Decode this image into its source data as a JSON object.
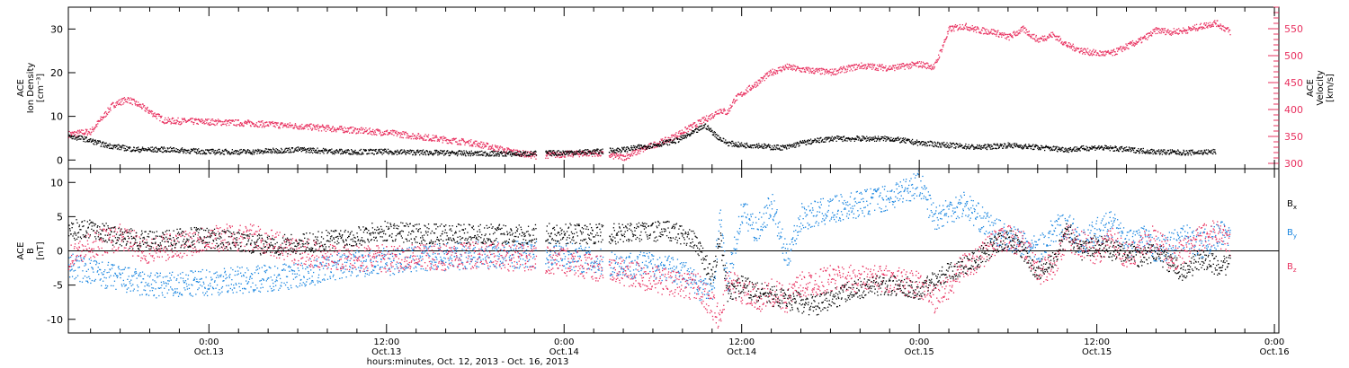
{
  "colors": {
    "black": "#000000",
    "pink": "#e8305f",
    "blue": "#1a86e0",
    "axis": "#000000"
  },
  "chart_data": [
    {
      "type": "scatter",
      "panel": "top",
      "xlabel": "hours:minutes, Oct. 12, 2013 - Oct. 16, 2013",
      "x_unit": "hours since Oct. 12, 2013 00:00",
      "xlim": [
        14.5,
        96.3
      ],
      "x_ticks": [
        {
          "hours": 24,
          "time": "0:00",
          "date": "Oct.13"
        },
        {
          "hours": 36,
          "time": "12:00",
          "date": "Oct.13"
        },
        {
          "hours": 48,
          "time": "0:00",
          "date": "Oct.14"
        },
        {
          "hours": 60,
          "time": "12:00",
          "date": "Oct.14"
        },
        {
          "hours": 72,
          "time": "0:00",
          "date": "Oct.15"
        },
        {
          "hours": 84,
          "time": "12:00",
          "date": "Oct.15"
        },
        {
          "hours": 96,
          "time": "0:00",
          "date": "Oct.16"
        }
      ],
      "left_axis": {
        "label_lines": [
          "ACE",
          "Ion Density",
          "[cm⁻³]"
        ],
        "ylim": [
          -2,
          35
        ],
        "ticks": [
          0,
          10,
          20,
          30
        ]
      },
      "right_axis": {
        "label_lines": [
          "ACE",
          "Velocity",
          "[km/s]"
        ],
        "ylim": [
          290,
          590
        ],
        "ticks": [
          300,
          350,
          400,
          450,
          500,
          550
        ],
        "color": "#e8305f"
      },
      "series": [
        {
          "name": "density",
          "axis": "left",
          "color": "#000000",
          "scatter": 0.6,
          "x": [
            14.5,
            15.5,
            17,
            19,
            21,
            24,
            27,
            30,
            33,
            36,
            39,
            42,
            45,
            48,
            50,
            52,
            54,
            55.5,
            56.5,
            57.5,
            58.5,
            59,
            60,
            61,
            62,
            63,
            64,
            66,
            68,
            70,
            72,
            74,
            76,
            78,
            80,
            82,
            84,
            86,
            88,
            90,
            92
          ],
          "y": [
            5.5,
            5,
            3.5,
            2.5,
            2.5,
            2,
            2,
            2.5,
            2,
            2,
            1.8,
            1.6,
            1.5,
            1.8,
            2,
            2.5,
            3.5,
            4.5,
            6,
            8,
            5,
            4,
            3.5,
            3.5,
            3,
            3,
            4,
            5,
            5,
            5,
            4,
            3.5,
            3,
            3.5,
            3,
            2.5,
            3,
            2.5,
            2,
            1.8,
            2
          ]
        },
        {
          "name": "velocity",
          "axis": "right",
          "color": "#e8305f",
          "scatter": 6,
          "x": [
            14.5,
            16,
            17.5,
            18.5,
            19.5,
            21,
            24,
            27,
            30,
            33,
            36,
            39,
            42,
            44,
            46,
            48,
            50,
            52,
            54,
            55,
            56,
            57,
            58,
            58.5,
            59,
            59.5,
            60,
            61,
            62,
            63,
            64,
            66,
            68,
            70,
            72,
            73,
            74,
            75,
            76,
            77,
            78,
            79,
            80,
            81,
            82,
            83,
            84,
            85,
            86,
            87,
            88,
            89,
            90,
            91,
            92,
            93
          ],
          "y": [
            355,
            360,
            410,
            420,
            405,
            380,
            378,
            375,
            370,
            364,
            358,
            348,
            338,
            325,
            315,
            318,
            320,
            312,
            335,
            345,
            360,
            375,
            390,
            400,
            395,
            420,
            430,
            450,
            470,
            480,
            475,
            470,
            482,
            478,
            485,
            480,
            550,
            556,
            548,
            545,
            535,
            550,
            530,
            540,
            520,
            510,
            505,
            505,
            518,
            530,
            548,
            545,
            548,
            555,
            562,
            545
          ]
        }
      ]
    },
    {
      "type": "scatter",
      "panel": "bottom",
      "xlim": [
        14.5,
        96.3
      ],
      "left_axis": {
        "label_lines": [
          "ACE",
          "B",
          "[nT]"
        ],
        "ylim": [
          -12,
          12
        ],
        "ticks": [
          -10,
          -5,
          0,
          5,
          10
        ]
      },
      "series": [
        {
          "name": "Bx",
          "color": "#000000",
          "scatter": 1.5,
          "x": [
            14.5,
            16,
            18,
            20,
            22,
            24,
            27,
            30,
            33,
            36,
            39,
            42,
            45,
            47,
            49,
            51,
            53,
            55,
            56,
            57,
            58,
            58.5,
            59,
            60,
            61,
            63,
            65,
            67,
            69,
            71,
            72,
            73,
            74,
            75,
            76,
            77,
            78,
            79,
            80,
            81,
            82,
            83,
            84,
            85,
            86,
            87,
            88,
            89,
            90,
            91,
            92,
            93
          ],
          "y": [
            3,
            3.5,
            2,
            1.5,
            2,
            2,
            1,
            1,
            2,
            3,
            2.5,
            2.5,
            2.5,
            2.6,
            2.6,
            2.5,
            2.8,
            3,
            2.5,
            1,
            -4,
            2,
            -6,
            -5,
            -6,
            -7,
            -8,
            -6,
            -5,
            -5,
            -6,
            -4,
            -3,
            -2,
            -1,
            1,
            2,
            0,
            -3,
            -1,
            3,
            0,
            1,
            0,
            0,
            -1,
            0,
            -2,
            -3,
            -1,
            -2,
            -2
          ]
        },
        {
          "name": "By",
          "color": "#1a86e0",
          "scatter": 2,
          "x": [
            14.5,
            16,
            18,
            20,
            22,
            24,
            27,
            30,
            33,
            36,
            39,
            42,
            45,
            48,
            50,
            52,
            54,
            56,
            57,
            58,
            58.5,
            59,
            60,
            61,
            62,
            63,
            64,
            66,
            68,
            70,
            72,
            73,
            74,
            75,
            76,
            77,
            78,
            79,
            80,
            81,
            82,
            83,
            84,
            85,
            86,
            87,
            88,
            89,
            90,
            91,
            92,
            93
          ],
          "y": [
            -2,
            -3,
            -4,
            -5,
            -5,
            -4.5,
            -4,
            -3.5,
            -2,
            -1.5,
            -1,
            -0.5,
            -0.5,
            -0.5,
            -1.5,
            -2,
            -2,
            -3,
            -5,
            -6,
            5,
            -5,
            6,
            3,
            7,
            -1,
            5,
            6,
            7,
            8,
            10,
            5,
            6,
            7,
            5,
            3,
            2,
            1,
            0,
            3,
            4,
            1,
            3,
            4,
            1,
            2,
            0,
            1,
            2,
            1,
            2,
            3
          ]
        },
        {
          "name": "Bz",
          "color": "#e8305f",
          "scatter": 2,
          "x": [
            14.5,
            16,
            18,
            20,
            22,
            24,
            27,
            30,
            33,
            36,
            39,
            42,
            45,
            48,
            50,
            52,
            54,
            56,
            57,
            58,
            58.5,
            59,
            60,
            61,
            62,
            63,
            64,
            66,
            68,
            70,
            72,
            73,
            74,
            75,
            76,
            77,
            78,
            79,
            80,
            81,
            82,
            83,
            84,
            85,
            86,
            87,
            88,
            89,
            90,
            91,
            92,
            93
          ],
          "y": [
            -1,
            1,
            2,
            0,
            1,
            2,
            2,
            0,
            -1,
            -1,
            -1,
            -0.5,
            -1,
            -1.5,
            -2.5,
            -3,
            -4,
            -5,
            -5,
            -8,
            -10,
            -4,
            -6,
            -7,
            -6,
            -7,
            -5,
            -4,
            -4,
            -4,
            -5,
            -7,
            -5,
            -2,
            -1,
            1,
            2,
            1,
            -3,
            -2,
            2,
            1,
            0,
            2,
            -1,
            1,
            2,
            -1,
            0,
            2,
            3,
            1
          ]
        }
      ]
    }
  ],
  "legend": [
    {
      "label": "B",
      "sub": "x",
      "color": "#000000"
    },
    {
      "label": "B",
      "sub": "y",
      "color": "#1a86e0"
    },
    {
      "label": "B",
      "sub": "z",
      "color": "#e8305f"
    }
  ]
}
